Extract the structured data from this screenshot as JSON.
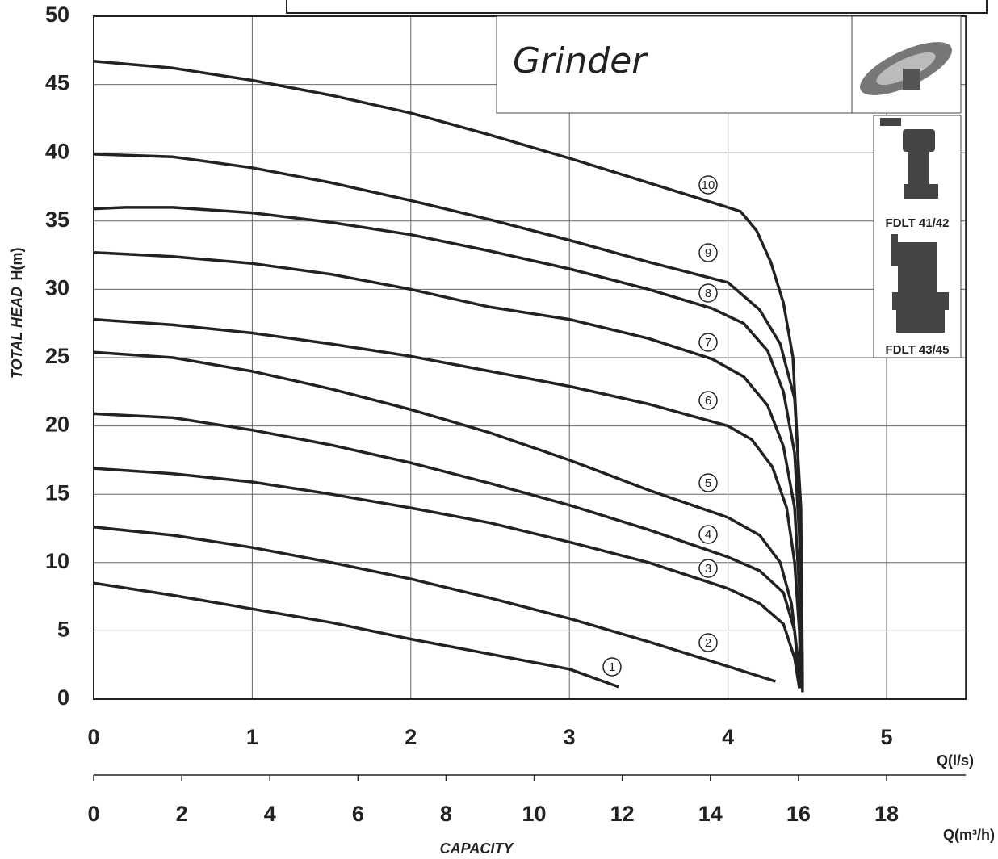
{
  "chart_data": {
    "type": "line",
    "heading": "Grinder",
    "models": [
      "FDLT 41/42",
      "FDLT 43/45"
    ],
    "xlabel": "Q(l/s)",
    "ylabel": "H(m)",
    "ylabel2": "TOTAL HEAD",
    "x2label": "Q(m³/h)",
    "x2title": "CAPACITY",
    "xlim": [
      0,
      5.5
    ],
    "xticks": [
      0,
      1,
      2,
      3,
      4,
      5
    ],
    "ylim": [
      0,
      50
    ],
    "yticks": [
      0,
      5,
      10,
      15,
      20,
      25,
      30,
      35,
      40,
      45,
      50
    ],
    "x2lim": [
      0,
      19.8
    ],
    "x2ticks": [
      0,
      2,
      4,
      6,
      8,
      10,
      12,
      14,
      16,
      18
    ],
    "grid": true,
    "color": "#222222",
    "series": [
      {
        "name": "1",
        "x": [
          0,
          0.5,
          1,
          1.5,
          2,
          2.5,
          3,
          3.31
        ],
        "values": [
          8.5,
          7.6,
          6.6,
          5.6,
          4.4,
          3.3,
          2.2,
          0.9
        ]
      },
      {
        "name": "2",
        "x": [
          0,
          0.5,
          1,
          1.5,
          2,
          2.5,
          3,
          3.5,
          4,
          4.3
        ],
        "values": [
          12.6,
          12.0,
          11.1,
          10.0,
          8.8,
          7.4,
          5.9,
          4.2,
          2.4,
          1.3
        ]
      },
      {
        "name": "3",
        "x": [
          0,
          0.5,
          1,
          1.5,
          2,
          2.5,
          3,
          3.5,
          4,
          4.2,
          4.35,
          4.42,
          4.45
        ],
        "values": [
          16.9,
          16.5,
          15.9,
          15.0,
          14.0,
          12.9,
          11.5,
          10.0,
          8.1,
          7.0,
          5.5,
          3,
          0.8
        ]
      },
      {
        "name": "4",
        "x": [
          0,
          0.5,
          1,
          1.5,
          2,
          2.5,
          3,
          3.5,
          4,
          4.2,
          4.35,
          4.42,
          4.45
        ],
        "values": [
          20.9,
          20.6,
          19.7,
          18.6,
          17.3,
          15.8,
          14.2,
          12.4,
          10.4,
          9.4,
          7.8,
          5,
          1
        ]
      },
      {
        "name": "5",
        "x": [
          0,
          0.5,
          1,
          1.5,
          2,
          2.5,
          3,
          3.5,
          4,
          4.2,
          4.33,
          4.4,
          4.44,
          4.46
        ],
        "values": [
          25.4,
          25.0,
          24.0,
          22.7,
          21.2,
          19.5,
          17.5,
          15.3,
          13.3,
          12.0,
          10.0,
          7,
          3,
          0.8
        ]
      },
      {
        "name": "6",
        "x": [
          0,
          0.5,
          1,
          1.5,
          2,
          2.5,
          3,
          3.5,
          4,
          4.15,
          4.28,
          4.37,
          4.42,
          4.45,
          4.46
        ],
        "values": [
          27.8,
          27.4,
          26.8,
          26.0,
          25.1,
          24.0,
          22.9,
          21.6,
          20.0,
          19.0,
          17,
          14,
          10,
          5,
          1
        ]
      },
      {
        "name": "7",
        "x": [
          0,
          0.5,
          1,
          1.5,
          2,
          2.5,
          3,
          3.5,
          3.9,
          4.1,
          4.25,
          4.35,
          4.42,
          4.45,
          4.47
        ],
        "values": [
          32.7,
          32.4,
          31.9,
          31.1,
          30.0,
          28.7,
          27.8,
          26.4,
          24.9,
          23.6,
          21.5,
          18.5,
          14,
          8,
          1
        ]
      },
      {
        "name": "8",
        "x": [
          0,
          0.2,
          0.5,
          1,
          1.5,
          2,
          2.5,
          3,
          3.5,
          3.9,
          4.1,
          4.25,
          4.35,
          4.42,
          4.46,
          4.47
        ],
        "values": [
          35.9,
          36.0,
          36.0,
          35.6,
          34.9,
          34.0,
          32.8,
          31.5,
          30.0,
          28.6,
          27.5,
          25.5,
          22.5,
          18,
          10,
          1
        ]
      },
      {
        "name": "9",
        "x": [
          0,
          0.5,
          1,
          1.5,
          2,
          2.5,
          3,
          3.5,
          4,
          4.2,
          4.33,
          4.42,
          4.46,
          4.47
        ],
        "values": [
          39.9,
          39.7,
          38.9,
          37.8,
          36.5,
          35.1,
          33.6,
          32.0,
          30.5,
          28.5,
          26,
          22,
          14,
          1.5
        ]
      },
      {
        "name": "10",
        "x": [
          0,
          0.5,
          1,
          1.5,
          2,
          2.5,
          3,
          3.5,
          4,
          4.08,
          4.18,
          4.27,
          4.35,
          4.41,
          4.44,
          4.46,
          4.47
        ],
        "values": [
          46.7,
          46.2,
          45.3,
          44.2,
          42.9,
          41.3,
          39.6,
          37.8,
          36.0,
          35.7,
          34.3,
          32,
          29,
          25,
          18,
          10,
          0.5
        ]
      }
    ]
  }
}
